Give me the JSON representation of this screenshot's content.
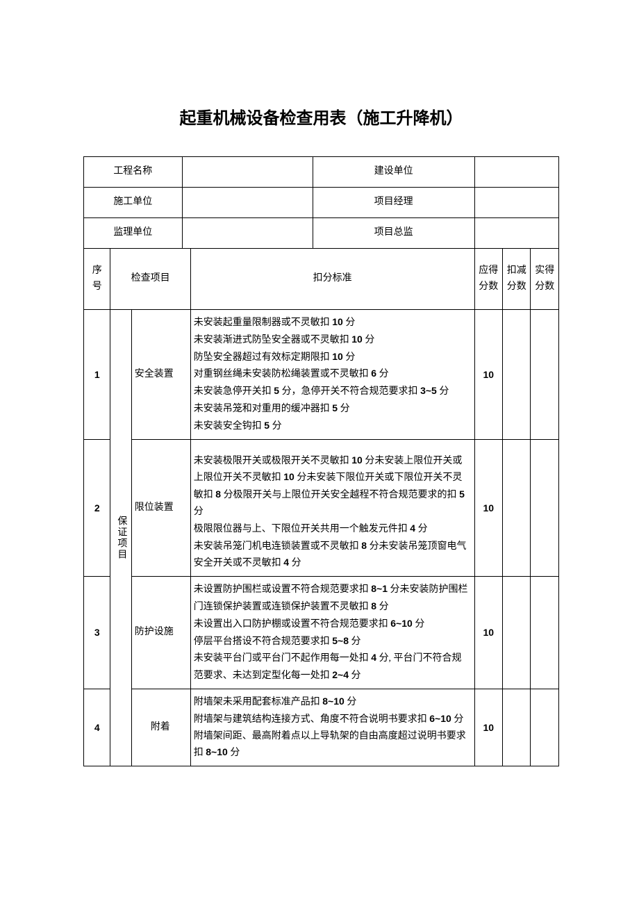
{
  "title": "起重机械设备检查用表（施工升降机）",
  "headers": {
    "project_name": "工程名称",
    "construction_unit": "建设单位",
    "builder_unit": "施工单位",
    "project_manager": "项目经理",
    "supervision_unit": "监理单位",
    "project_director": "项目总监"
  },
  "col_headers": {
    "seq": "序号",
    "check_item": "检查项目",
    "criteria": "扣分标准",
    "full_score": "应得分数",
    "deduct_score": "扣减分数",
    "actual_score": "实得分数"
  },
  "group_label": "保证项目",
  "rows": [
    {
      "seq": "1",
      "item": "安全装置",
      "criteria_html": "未安装起重量限制器或不灵敏扣 <span class='bold'>10</span> 分<br>未安装渐进式防坠安全器或不灵敏扣 <span class='bold'>10</span> 分<br>防坠安全器超过有效标定期限扣 <span class='bold'>10</span> 分<br>对重钢丝绳未安装防松绳装置或不灵敏扣 <span class='bold'>6</span> 分<br>未安装急停开关扣 <span class='bold'>5</span> 分，急停开关不符合规范要求扣 <span class='bold'>3~5</span> 分<br>未安装吊笼和对重用的缓冲器扣 <span class='bold'>5</span> 分<br>未安装安全钩扣 <span class='bold'>5</span> 分",
      "score": "10"
    },
    {
      "seq": "2",
      "item": "限位装置",
      "criteria_html": "未安装极限开关或极限开关不灵敏扣 <span class='bold'>10</span> 分未安装上限位开关或上限位开关不灵敏扣 <span class='bold'>10</span> 分未安装下限位开关或下限位开关不灵敏扣 <span class='bold'>8</span> 分极限开关与上限位开关安全越程不符合规范要求的扣 <span class='bold'>5</span> 分<br>极限限位器与上、下限位开关共用一个触发元件扣 <span class='bold'>4</span> 分<br>未安装吊笼门机电连锁装置或不灵敏扣 <span class='bold'>8</span> 分未安装吊笼顶窗电气安全开关或不灵敏扣 <span class='bold'>4</span> 分",
      "score": "10"
    },
    {
      "seq": "3",
      "item": "防护设施",
      "criteria_html": "未设置防护围栏或设置不符合规范要求扣 <span class='bold'>8~1</span> 分未安装防护围栏门连锁保护装置或连锁保护装置不灵敏扣 <span class='bold'>8</span> 分<br>未设置出入口防护棚或设置不符合规范要求扣 <span class='bold'>6~10</span> 分<br>停层平台搭设不符合规范要求扣 <span class='bold'>5~8</span> 分<br>未安装平台门或平台门不起作用每一处扣 <span class='bold'>4</span> 分, 平台门不符合规范要求、未达到定型化每一处扣 <span class='bold'>2~4</span> 分",
      "score": "10"
    },
    {
      "seq": "4",
      "item": "附着",
      "criteria_html": "附墙架未采用配套标准产品扣 <span class='bold'>8~10</span> 分<br>附墙架与建筑结构连接方式、角度不符合说明书要求扣 <span class='bold'>6~10</span> 分<br>附墙架间距、最高附着点以上导轨架的自由高度超过说明书要求扣 <span class='bold'>8~10</span> 分",
      "score": "10"
    }
  ],
  "layout": {
    "col_widths": {
      "seq": 38,
      "group": 30,
      "item": 72,
      "spacer": 12,
      "criteria": 344,
      "score1": 40,
      "score2": 40,
      "score3": 40
    }
  }
}
